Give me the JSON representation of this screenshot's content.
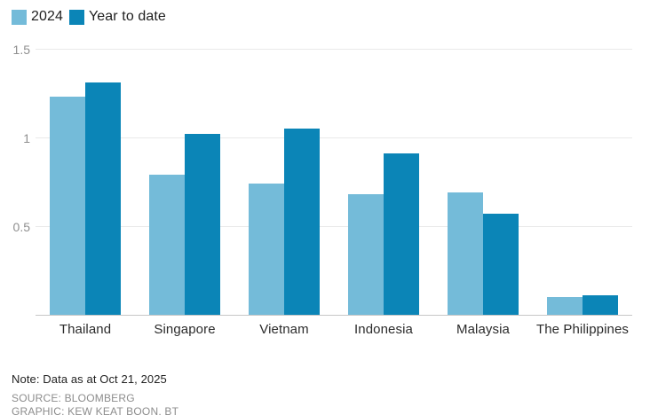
{
  "chart_data": {
    "type": "bar",
    "categories": [
      "Thailand",
      "Singapore",
      "Vietnam",
      "Indonesia",
      "Malaysia",
      "The Philippines"
    ],
    "series": [
      {
        "name": "2024",
        "color": "#74bbd9",
        "values": [
          1.23,
          0.79,
          0.74,
          0.68,
          0.69,
          0.1
        ]
      },
      {
        "name": "Year to date",
        "color": "#0b85b7",
        "values": [
          1.31,
          1.02,
          1.05,
          0.91,
          0.57,
          0.11
        ]
      }
    ],
    "xlabel": "",
    "ylabel": "",
    "ylim": [
      0,
      1.51
    ],
    "yticks": [
      0.5,
      1,
      1.5
    ],
    "ytick_labels": [
      "0.5",
      "1",
      "1.5"
    ],
    "grid": true,
    "legend_position": "top-left",
    "gridline_color": "#e9e9e9",
    "baseline_color": "#c7c7c7",
    "tick_text_color": "#8f8f8f",
    "category_text_color": "#2b2b2b"
  },
  "notes": {
    "note": "Note: Data as at Oct 21, 2025",
    "source": "SOURCE: BLOOMBERG",
    "graphic": "GRAPHIC: KEW KEAT BOON, BT"
  }
}
